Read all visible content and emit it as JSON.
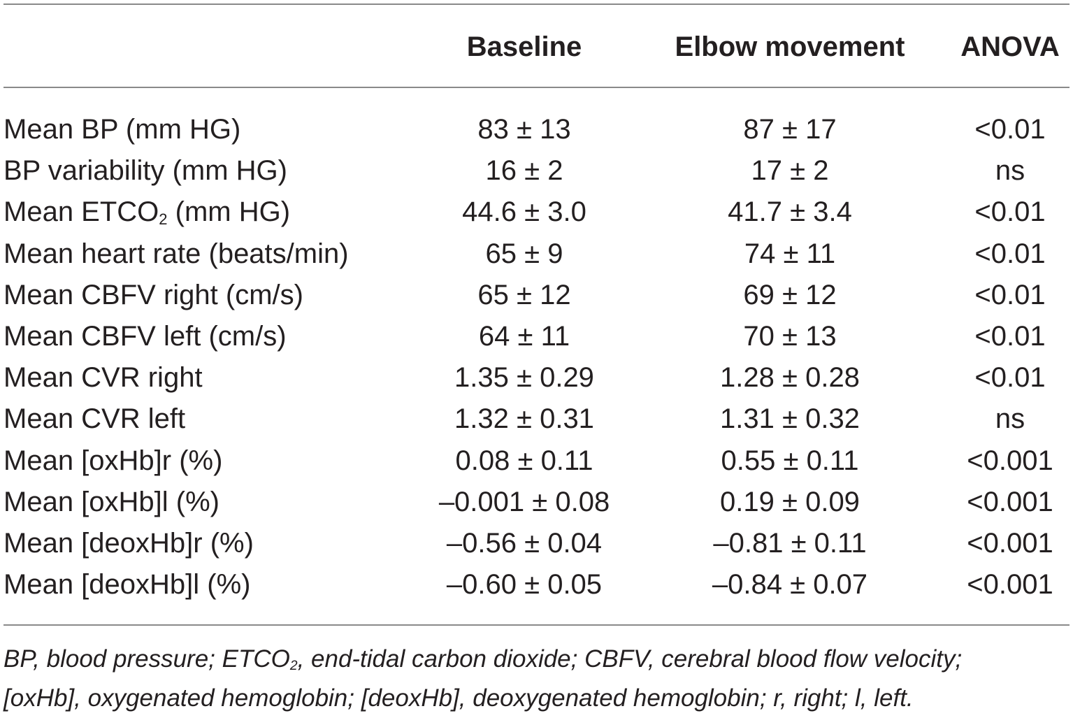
{
  "table": {
    "headers": {
      "label": "",
      "baseline": "Baseline",
      "elbow": "Elbow movement",
      "anova": "ANOVA"
    },
    "rows": [
      {
        "label": "Mean BP (mm HG)",
        "baseline": "83 ± 13",
        "elbow": "87 ± 17",
        "anova": "<0.01"
      },
      {
        "label": "BP variability (mm HG)",
        "baseline": "16 ± 2",
        "elbow": "17 ± 2",
        "anova": "ns"
      },
      {
        "label_pre": "Mean ETCO",
        "label_sub": "2",
        "label_post": " (mm HG)",
        "baseline": "44.6 ± 3.0",
        "elbow": "41.7 ± 3.4",
        "anova": "<0.01"
      },
      {
        "label": "Mean heart rate (beats/min)",
        "baseline": "65 ± 9",
        "elbow": "74 ± 11",
        "anova": "<0.01"
      },
      {
        "label": "Mean CBFV right (cm/s)",
        "baseline": "65 ± 12",
        "elbow": "69 ± 12",
        "anova": "<0.01"
      },
      {
        "label": "Mean CBFV left (cm/s)",
        "baseline": "64 ± 11",
        "elbow": "70 ± 13",
        "anova": "<0.01"
      },
      {
        "label": "Mean CVR right",
        "baseline": "1.35 ± 0.29",
        "elbow": "1.28 ± 0.28",
        "anova": "<0.01"
      },
      {
        "label": "Mean CVR left",
        "baseline": "1.32 ± 0.31",
        "elbow": "1.31 ± 0.32",
        "anova": "ns"
      },
      {
        "label": "Mean [oxHb]r (%)",
        "baseline": "0.08 ± 0.11",
        "elbow": "0.55 ± 0.11",
        "anova": "<0.001"
      },
      {
        "label": "Mean [oxHb]l (%)",
        "baseline": "–0.001 ± 0.08",
        "elbow": "0.19 ± 0.09",
        "anova": "<0.001"
      },
      {
        "label": "Mean [deoxHb]r (%)",
        "baseline": "–0.56 ± 0.04",
        "elbow": "–0.81 ± 0.11",
        "anova": "<0.001"
      },
      {
        "label": "Mean [deoxHb]l (%)",
        "baseline": "–0.60 ± 0.05",
        "elbow": "–0.84 ± 0.07",
        "anova": "<0.001"
      }
    ]
  },
  "footnote": {
    "line1_pre": "BP, blood pressure; ETCO",
    "line1_sub": "2",
    "line1_post": ", end-tidal carbon dioxide; CBFV, cerebral blood flow velocity;",
    "line2": "[oxHb], oxygenated hemoglobin; [deoxHb], deoxygenated hemoglobin; r, right; l, left."
  }
}
